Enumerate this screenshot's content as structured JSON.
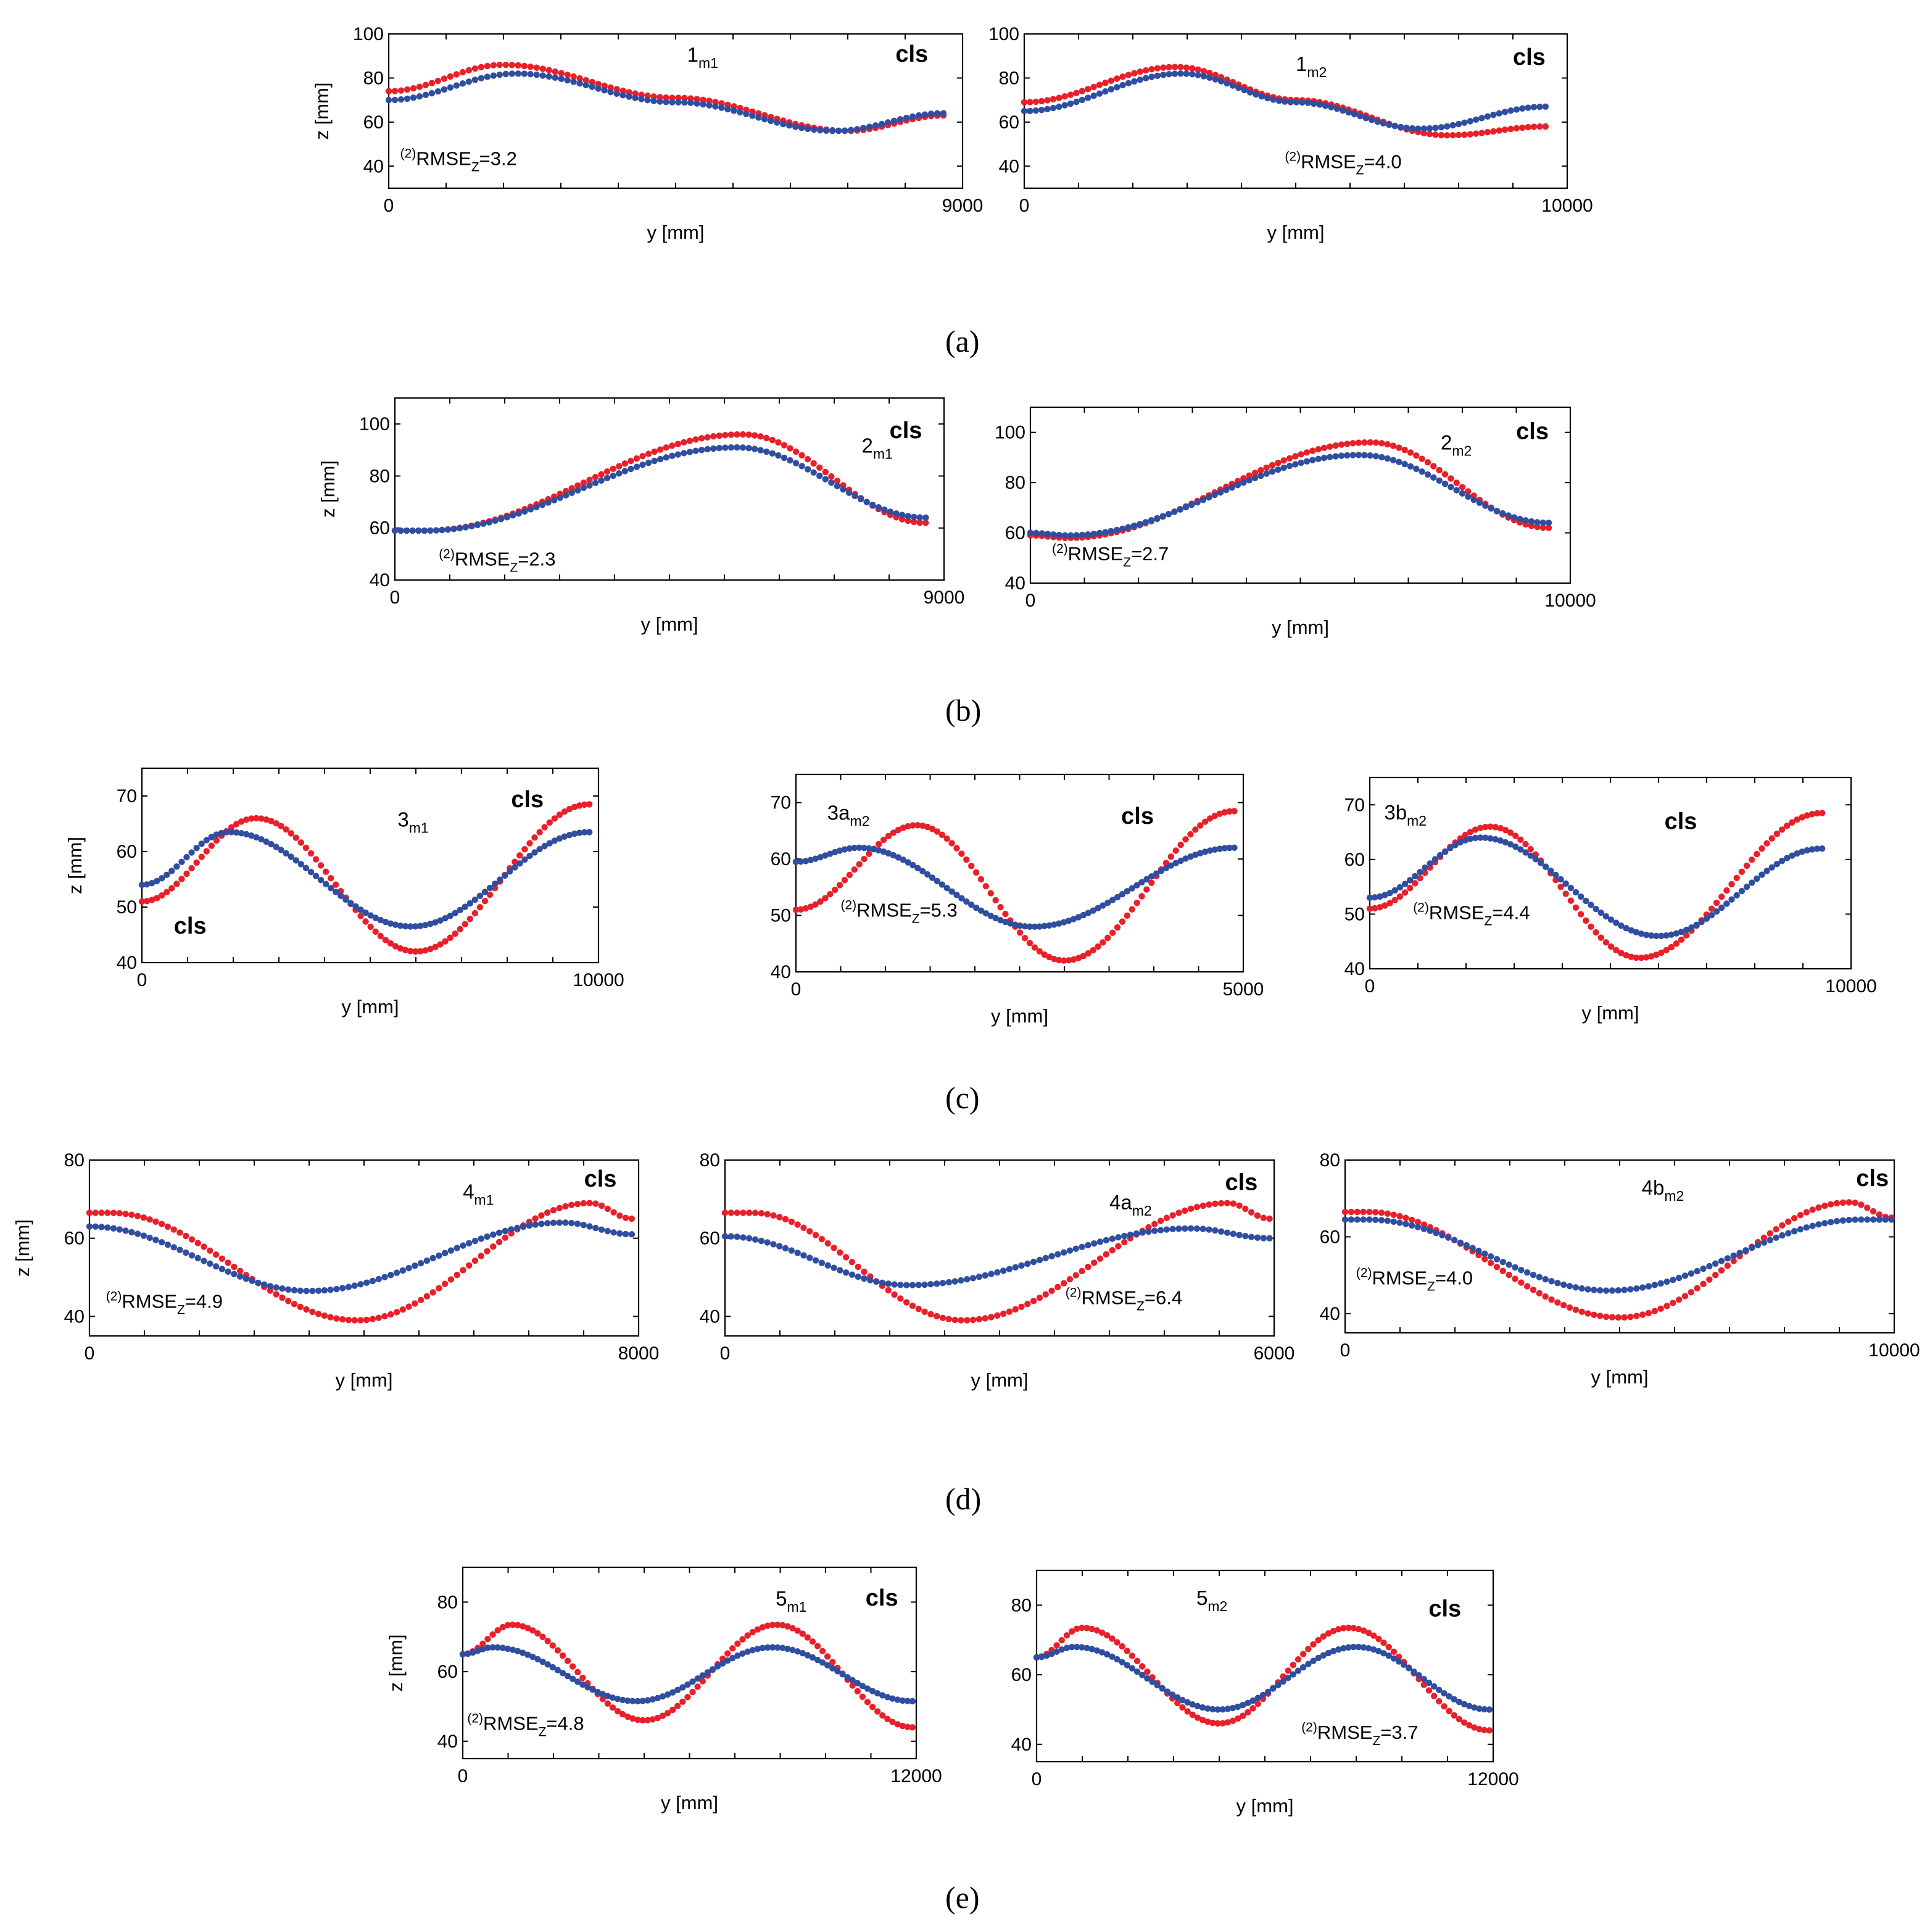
{
  "colors": {
    "measured": "#e8202a",
    "model": "#2f4ea0"
  },
  "captions": {
    "a": "(a)",
    "b": "(b)",
    "c": "(c)",
    "d": "(d)",
    "e": "(e)"
  },
  "chart_data": [
    {
      "id": "p1m1",
      "type": "scatter",
      "title": "1",
      "title_sub": "m1",
      "cls_label": "cls",
      "cls2_label": null,
      "rmse_prefix": "(2)",
      "rmse_label": "RMSE",
      "rmse_sub": "Z",
      "rmse_value": "=3.2",
      "xlabel": "y [mm]",
      "ylabel": "z [mm]",
      "show_ylabel": true,
      "xlim": [
        0,
        9000
      ],
      "ylim": [
        30,
        100
      ],
      "xticks": [
        0,
        9000
      ],
      "yticks": [
        40,
        60,
        80,
        100
      ],
      "series": [
        {
          "name": "measured",
          "x": [
            0,
            1800,
            4500,
            7200,
            8700
          ],
          "y": [
            74,
            86,
            71,
            56,
            63
          ]
        },
        {
          "name": "model",
          "x": [
            0,
            2000,
            4500,
            7000,
            8700
          ],
          "y": [
            70,
            82,
            69,
            56,
            64
          ]
        }
      ]
    },
    {
      "id": "p1m2",
      "type": "scatter",
      "title": "1",
      "title_sub": "m2",
      "cls_label": "cls",
      "cls2_label": null,
      "rmse_prefix": "(2)",
      "rmse_label": "RMSE",
      "rmse_sub": "Z",
      "rmse_value": "=4.0",
      "xlabel": "y [mm]",
      "ylabel": "z [mm]",
      "show_ylabel": false,
      "xlim": [
        0,
        10000
      ],
      "ylim": [
        30,
        100
      ],
      "xticks": [
        0,
        10000
      ],
      "yticks": [
        40,
        60,
        80,
        100
      ],
      "series": [
        {
          "name": "measured",
          "x": [
            0,
            2800,
            5000,
            7800,
            9600
          ],
          "y": [
            69,
            85,
            70,
            54,
            58
          ]
        },
        {
          "name": "model",
          "x": [
            0,
            2900,
            5000,
            7300,
            9600
          ],
          "y": [
            65,
            82,
            69,
            57,
            67
          ]
        }
      ]
    },
    {
      "id": "p2m1",
      "type": "scatter",
      "title": "2",
      "title_sub": "m1",
      "cls_label": "cls",
      "cls2_label": null,
      "rmse_prefix": "(2)",
      "rmse_label": "RMSE",
      "rmse_sub": "Z",
      "rmse_value": "=2.3",
      "xlabel": "y [mm]",
      "ylabel": "z [mm]",
      "show_ylabel": true,
      "xlim": [
        0,
        9000
      ],
      "ylim": [
        40,
        110
      ],
      "xticks": [
        0,
        9000
      ],
      "yticks": [
        40,
        60,
        80,
        100
      ],
      "series": [
        {
          "name": "measured",
          "x": [
            0,
            500,
            5700,
            8700
          ],
          "y": [
            59,
            59,
            96,
            62
          ]
        },
        {
          "name": "model",
          "x": [
            0,
            500,
            5600,
            8700
          ],
          "y": [
            59,
            59,
            91,
            64
          ]
        }
      ]
    },
    {
      "id": "p2m2",
      "type": "scatter",
      "title": "2",
      "title_sub": "m2",
      "cls_label": "cls",
      "cls2_label": null,
      "rmse_prefix": "(2)",
      "rmse_label": "RMSE",
      "rmse_sub": "Z",
      "rmse_value": "=2.7",
      "xlabel": "y [mm]",
      "ylabel": "z [mm]",
      "show_ylabel": false,
      "xlim": [
        0,
        10000
      ],
      "ylim": [
        40,
        110
      ],
      "xticks": [
        0,
        10000
      ],
      "yticks": [
        40,
        60,
        80,
        100
      ],
      "series": [
        {
          "name": "measured",
          "x": [
            0,
            700,
            6300,
            9600
          ],
          "y": [
            59,
            58,
            96,
            62
          ]
        },
        {
          "name": "model",
          "x": [
            0,
            700,
            6100,
            9600
          ],
          "y": [
            60,
            59,
            91,
            64
          ]
        }
      ]
    },
    {
      "id": "p3m1",
      "type": "scatter",
      "title": "3",
      "title_sub": "m1",
      "cls_label": "cls",
      "cls2_label": "cls",
      "rmse_prefix": null,
      "rmse_label": null,
      "rmse_sub": null,
      "rmse_value": null,
      "xlabel": "y [mm]",
      "ylabel": "z [mm]",
      "show_ylabel": true,
      "xlim": [
        0,
        10000
      ],
      "ylim": [
        40,
        75
      ],
      "xticks": [
        0,
        10000
      ],
      "yticks": [
        40,
        50,
        60,
        70
      ],
      "series": [
        {
          "name": "measured",
          "x": [
            0,
            2500,
            6000,
            9800
          ],
          "y": [
            51,
            66,
            42,
            68.5
          ]
        },
        {
          "name": "model",
          "x": [
            0,
            1900,
            5900,
            9800
          ],
          "y": [
            54,
            63.5,
            46.5,
            63.5
          ]
        }
      ]
    },
    {
      "id": "p3am2",
      "type": "scatter",
      "title": "3a",
      "title_sub": "m2",
      "cls_label": "cls",
      "cls2_label": null,
      "rmse_prefix": "(2)",
      "rmse_label": "RMSE",
      "rmse_sub": "Z",
      "rmse_value": "=5.3",
      "xlabel": "y [mm]",
      "ylabel": "z [mm]",
      "show_ylabel": false,
      "xlim": [
        0,
        5000
      ],
      "ylim": [
        40,
        75
      ],
      "xticks": [
        0,
        5000
      ],
      "yticks": [
        40,
        50,
        60,
        70
      ],
      "series": [
        {
          "name": "measured",
          "x": [
            0,
            1350,
            3000,
            4900
          ],
          "y": [
            51,
            66,
            42,
            68.5
          ]
        },
        {
          "name": "model",
          "x": [
            0,
            700,
            2650,
            4900
          ],
          "y": [
            59.5,
            62,
            48,
            62
          ]
        }
      ]
    },
    {
      "id": "p3bm2",
      "type": "scatter",
      "title": "3b",
      "title_sub": "m2",
      "cls_label": "cls",
      "cls2_label": null,
      "rmse_prefix": "(2)",
      "rmse_label": "RMSE",
      "rmse_sub": "Z",
      "rmse_value": "=4.4",
      "xlabel": "y [mm]",
      "ylabel": "z [mm]",
      "show_ylabel": false,
      "xlim": [
        0,
        10000
      ],
      "ylim": [
        40,
        75
      ],
      "xticks": [
        0,
        10000
      ],
      "yticks": [
        40,
        50,
        60,
        70
      ],
      "series": [
        {
          "name": "measured",
          "x": [
            0,
            2500,
            5600,
            9400
          ],
          "y": [
            51,
            66,
            42,
            68.5
          ]
        },
        {
          "name": "model",
          "x": [
            0,
            2300,
            6000,
            9400
          ],
          "y": [
            53,
            64,
            46,
            62
          ]
        }
      ]
    },
    {
      "id": "p4m1",
      "type": "scatter",
      "title": "4",
      "title_sub": "m1",
      "cls_label": "cls",
      "cls2_label": null,
      "rmse_prefix": "(2)",
      "rmse_label": "RMSE",
      "rmse_sub": "Z",
      "rmse_value": "=4.9",
      "xlabel": "y [mm]",
      "ylabel": "z [mm]",
      "show_ylabel": true,
      "xlim": [
        0,
        8000
      ],
      "ylim": [
        35,
        80
      ],
      "xticks": [
        0,
        8000
      ],
      "yticks": [
        40,
        60,
        80
      ],
      "series": [
        {
          "name": "measured",
          "x": [
            0,
            300,
            3900,
            7300,
            7900
          ],
          "y": [
            66.5,
            66.5,
            39,
            69,
            65
          ]
        },
        {
          "name": "model",
          "x": [
            0,
            3200,
            6900,
            7900
          ],
          "y": [
            63,
            46.5,
            64,
            61
          ]
        }
      ]
    },
    {
      "id": "p4am2",
      "type": "scatter",
      "title": "4a",
      "title_sub": "m2",
      "cls_label": "cls",
      "cls2_label": null,
      "rmse_prefix": "(2)",
      "rmse_label": "RMSE",
      "rmse_sub": "Z",
      "rmse_value": "=6.4",
      "xlabel": "y [mm]",
      "ylabel": "z [mm]",
      "show_ylabel": false,
      "xlim": [
        0,
        6000
      ],
      "ylim": [
        35,
        80
      ],
      "xticks": [
        0,
        6000
      ],
      "yticks": [
        40,
        60,
        80
      ],
      "series": [
        {
          "name": "measured",
          "x": [
            0,
            300,
            2600,
            5500,
            5950
          ],
          "y": [
            66.5,
            66.5,
            39,
            69,
            65
          ]
        },
        {
          "name": "model",
          "x": [
            0,
            2000,
            5100,
            5950
          ],
          "y": [
            60.5,
            48,
            62.5,
            60
          ]
        }
      ]
    },
    {
      "id": "p4bm2",
      "type": "scatter",
      "title": "4b",
      "title_sub": "m2",
      "cls_label": "cls",
      "cls2_label": null,
      "rmse_prefix": "(2)",
      "rmse_label": "RMSE",
      "rmse_sub": "Z",
      "rmse_value": "=4.0",
      "xlabel": "y [mm]",
      "ylabel": "z [mm]",
      "show_ylabel": false,
      "xlim": [
        0,
        10000
      ],
      "ylim": [
        35,
        80
      ],
      "xticks": [
        0,
        10000
      ],
      "yticks": [
        40,
        60,
        80
      ],
      "series": [
        {
          "name": "measured",
          "x": [
            0,
            400,
            5000,
            9200,
            9950
          ],
          "y": [
            66.5,
            66.5,
            39,
            69,
            65
          ]
        },
        {
          "name": "model",
          "x": [
            0,
            400,
            4800,
            9400,
            9950
          ],
          "y": [
            64.5,
            64.5,
            46,
            64.5,
            64.5
          ]
        }
      ]
    },
    {
      "id": "p5m1",
      "type": "scatter",
      "title": "5",
      "title_sub": "m1",
      "cls_label": "cls",
      "cls2_label": null,
      "rmse_prefix": "(2)",
      "rmse_label": "RMSE",
      "rmse_sub": "Z",
      "rmse_value": "=4.8",
      "xlabel": "y [mm]",
      "ylabel": "z [mm]",
      "show_ylabel": true,
      "xlim": [
        0,
        12000
      ],
      "ylim": [
        35,
        90
      ],
      "xticks": [
        0,
        12000
      ],
      "yticks": [
        40,
        60,
        80
      ],
      "series": [
        {
          "name": "measured",
          "x": [
            0,
            1300,
            4800,
            8300,
            11900
          ],
          "y": [
            65,
            73.5,
            46,
            73.5,
            44
          ]
        },
        {
          "name": "model",
          "x": [
            0,
            800,
            4600,
            8200,
            11900
          ],
          "y": [
            65,
            67,
            51.5,
            67,
            51.5
          ]
        }
      ]
    },
    {
      "id": "p5m2",
      "type": "scatter",
      "title": "5",
      "title_sub": "m2",
      "cls_label": "cls",
      "cls2_label": null,
      "rmse_prefix": "(2)",
      "rmse_label": "RMSE",
      "rmse_sub": "Z",
      "rmse_value": "=3.7",
      "xlabel": "y [mm]",
      "ylabel": "z [mm]",
      "show_ylabel": false,
      "xlim": [
        0,
        12000
      ],
      "ylim": [
        35,
        90
      ],
      "xticks": [
        0,
        12000
      ],
      "yticks": [
        40,
        60,
        80
      ],
      "series": [
        {
          "name": "measured",
          "x": [
            0,
            1200,
            4800,
            8200,
            11900
          ],
          "y": [
            65,
            73.5,
            46,
            73.5,
            44
          ]
        },
        {
          "name": "model",
          "x": [
            0,
            1000,
            4800,
            8400,
            11900
          ],
          "y": [
            65,
            68,
            50,
            68,
            50
          ]
        }
      ]
    }
  ]
}
